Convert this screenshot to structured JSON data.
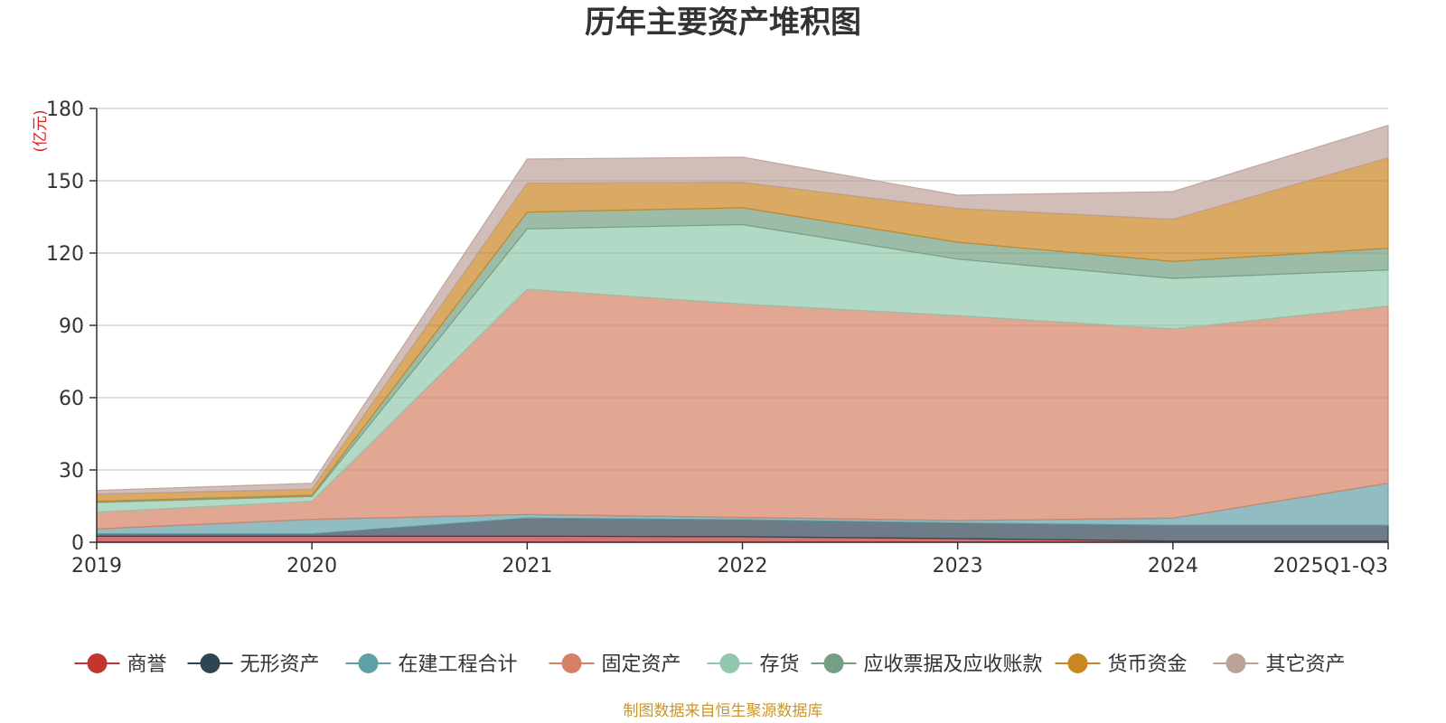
{
  "chart_data": {
    "type": "area",
    "stacked": true,
    "title": "历年主要资产堆积图",
    "unit_label": "(亿元)",
    "categories": [
      "2019",
      "2020",
      "2021",
      "2022",
      "2023",
      "2024",
      "2025Q1-Q3"
    ],
    "ylim": [
      0,
      180
    ],
    "yticks": [
      0,
      30,
      60,
      90,
      120,
      150,
      180
    ],
    "grid": true,
    "legend_position": "bottom",
    "series": [
      {
        "name": "商誉",
        "color": "#c23531",
        "values": [
          2.5,
          2.5,
          2.5,
          2.3,
          1.5,
          0.5,
          0.5
        ]
      },
      {
        "name": "无形资产",
        "color": "#2f4554",
        "values": [
          1.0,
          1.0,
          7.5,
          7.0,
          6.5,
          6.5,
          6.5
        ]
      },
      {
        "name": "在建工程合计",
        "color": "#61a0a8",
        "values": [
          2.0,
          6.0,
          1.5,
          1.0,
          1.0,
          3.0,
          17.5
        ]
      },
      {
        "name": "固定资产",
        "color": "#d48265",
        "values": [
          7.0,
          7.5,
          93.5,
          88.5,
          85.0,
          78.5,
          73.5
        ]
      },
      {
        "name": "存货",
        "color": "#91c7ae",
        "values": [
          4.0,
          2.0,
          25.0,
          33.0,
          23.5,
          21.0,
          15.0
        ]
      },
      {
        "name": "应收票据及应收账款",
        "color": "#749f83",
        "values": [
          0.5,
          0.5,
          7.0,
          7.0,
          7.0,
          7.0,
          9.0
        ]
      },
      {
        "name": "货币资金",
        "color": "#ca8622",
        "values": [
          3.0,
          2.5,
          12.0,
          10.5,
          14.0,
          17.5,
          37.5
        ]
      },
      {
        "name": "其它资产",
        "color": "#bda29a",
        "values": [
          1.5,
          2.5,
          10.0,
          10.5,
          5.5,
          11.5,
          13.5
        ]
      }
    ]
  },
  "footer": {
    "source_note": "制图数据来自恒生聚源数据库"
  }
}
